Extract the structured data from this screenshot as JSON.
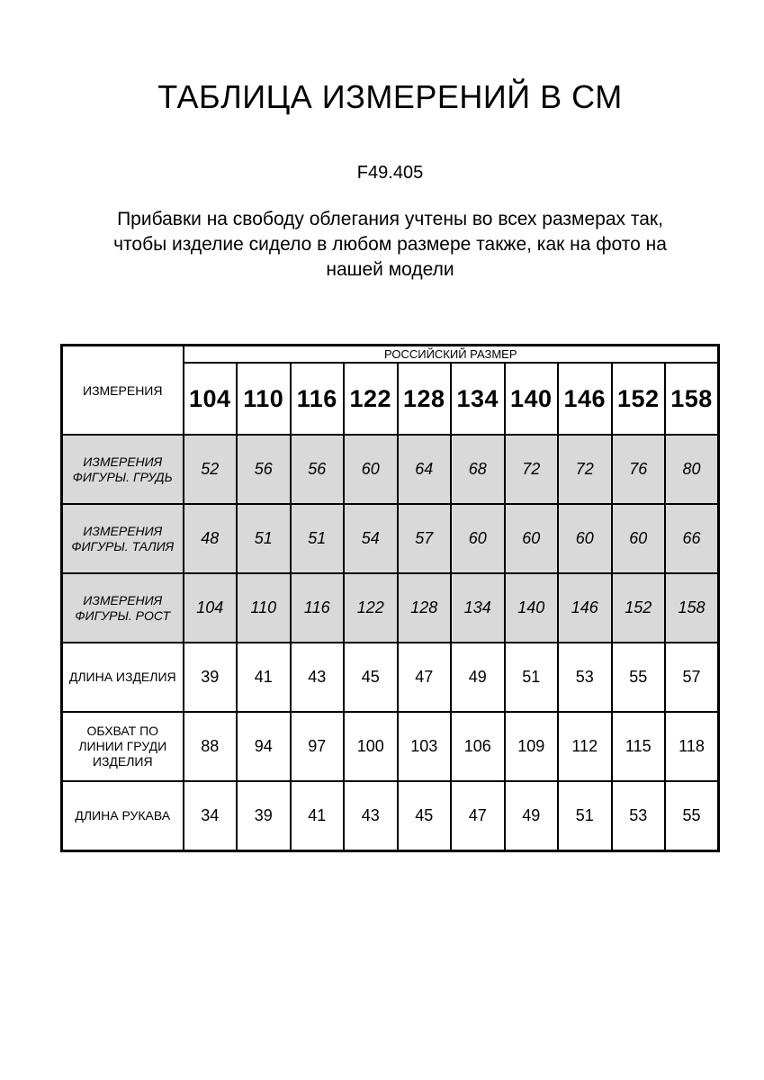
{
  "page": {
    "title": "ТАБЛИЦА ИЗМЕРЕНИЙ В СМ",
    "model_code": "F49.405",
    "description_lines": [
      "Прибавки на свободу облегания учтены во всех размерах так,",
      "чтобы изделие сидело в любом размере также, как на фото на",
      "нашей модели"
    ]
  },
  "table": {
    "corner_header": "ИЗМЕРЕНИЯ",
    "size_group_header": "РОССИЙСКИЙ РАЗМЕР",
    "sizes": [
      "104",
      "110",
      "116",
      "122",
      "128",
      "134",
      "140",
      "146",
      "152",
      "158"
    ],
    "rows": [
      {
        "label": "ИЗМЕРЕНИЯ\nФИГУРЫ. ГРУДЬ",
        "values": [
          "52",
          "56",
          "56",
          "60",
          "64",
          "68",
          "72",
          "72",
          "76",
          "80"
        ],
        "highlighted": true
      },
      {
        "label": "ИЗМЕРЕНИЯ\nФИГУРЫ. ТАЛИЯ",
        "values": [
          "48",
          "51",
          "51",
          "54",
          "57",
          "60",
          "60",
          "60",
          "60",
          "66"
        ],
        "highlighted": true
      },
      {
        "label": "ИЗМЕРЕНИЯ\nФИГУРЫ. РОСТ",
        "values": [
          "104",
          "110",
          "116",
          "122",
          "128",
          "134",
          "140",
          "146",
          "152",
          "158"
        ],
        "highlighted": true
      },
      {
        "label": "ДЛИНА ИЗДЕЛИЯ",
        "values": [
          "39",
          "41",
          "43",
          "45",
          "47",
          "49",
          "51",
          "53",
          "55",
          "57"
        ],
        "highlighted": false
      },
      {
        "label": "ОБХВАТ ПО\nЛИНИИ ГРУДИ\nИЗДЕЛИЯ",
        "values": [
          "88",
          "94",
          "97",
          "100",
          "103",
          "106",
          "109",
          "112",
          "115",
          "118"
        ],
        "highlighted": false
      },
      {
        "label": "ДЛИНА РУКАВА",
        "values": [
          "34",
          "39",
          "41",
          "43",
          "45",
          "47",
          "49",
          "51",
          "53",
          "55"
        ],
        "highlighted": false
      }
    ],
    "colors": {
      "highlight_bg": "#d9d9d9",
      "border": "#000000",
      "text": "#000000",
      "page_bg": "#ffffff"
    }
  }
}
